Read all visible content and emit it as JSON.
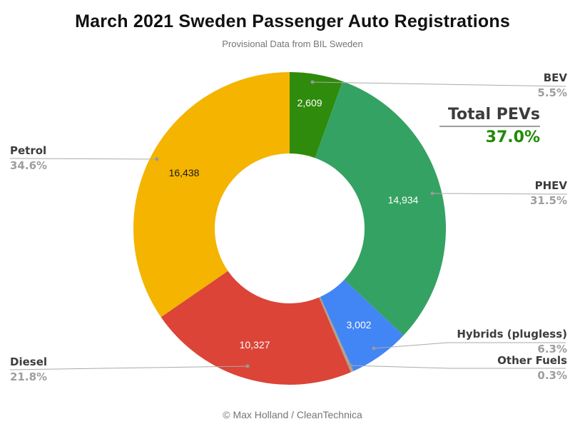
{
  "header": {
    "title": "March 2021 Sweden Passenger Auto Registrations",
    "subtitle": "Provisional Data from BIL Sweden"
  },
  "chart_data": {
    "type": "pie",
    "subtype": "donut",
    "title": "March 2021 Sweden Passenger Auto Registrations",
    "legend": "none",
    "start_angle_deg": 0,
    "direction": "clockwise",
    "slices": [
      {
        "label": "BEV",
        "pct": 5.5,
        "pct_label": "5.5%",
        "value": 2609,
        "value_label": "2,609",
        "color": "#2e8b0b"
      },
      {
        "label": "PHEV",
        "pct": 31.5,
        "pct_label": "31.5%",
        "value": 14934,
        "value_label": "14,934",
        "color": "#34a262"
      },
      {
        "label": "Hybrids (plugless)",
        "pct": 6.3,
        "pct_label": "6.3%",
        "value": 3002,
        "value_label": "3,002",
        "color": "#4285f4"
      },
      {
        "label": "Other Fuels",
        "pct": 0.3,
        "pct_label": "0.3%",
        "value": null,
        "value_label": "",
        "color": "#b3a08a"
      },
      {
        "label": "Diesel",
        "pct": 21.8,
        "pct_label": "21.8%",
        "value": 10327,
        "value_label": "10,327",
        "color": "#db4437"
      },
      {
        "label": "Petrol",
        "pct": 34.6,
        "pct_label": "34.6%",
        "value": 16438,
        "value_label": "16,438",
        "color": "#f4b400"
      }
    ],
    "annotation": {
      "label": "Total PEVs",
      "value_label": "37.0%"
    }
  },
  "footer": {
    "credit": "© Max Holland / CleanTechnica"
  },
  "colors": {
    "label_dark": "#3c3c3c",
    "pct_gray": "#9e9e9e",
    "total_green": "#1f8a07",
    "leader_line": "#aaaaaa"
  }
}
